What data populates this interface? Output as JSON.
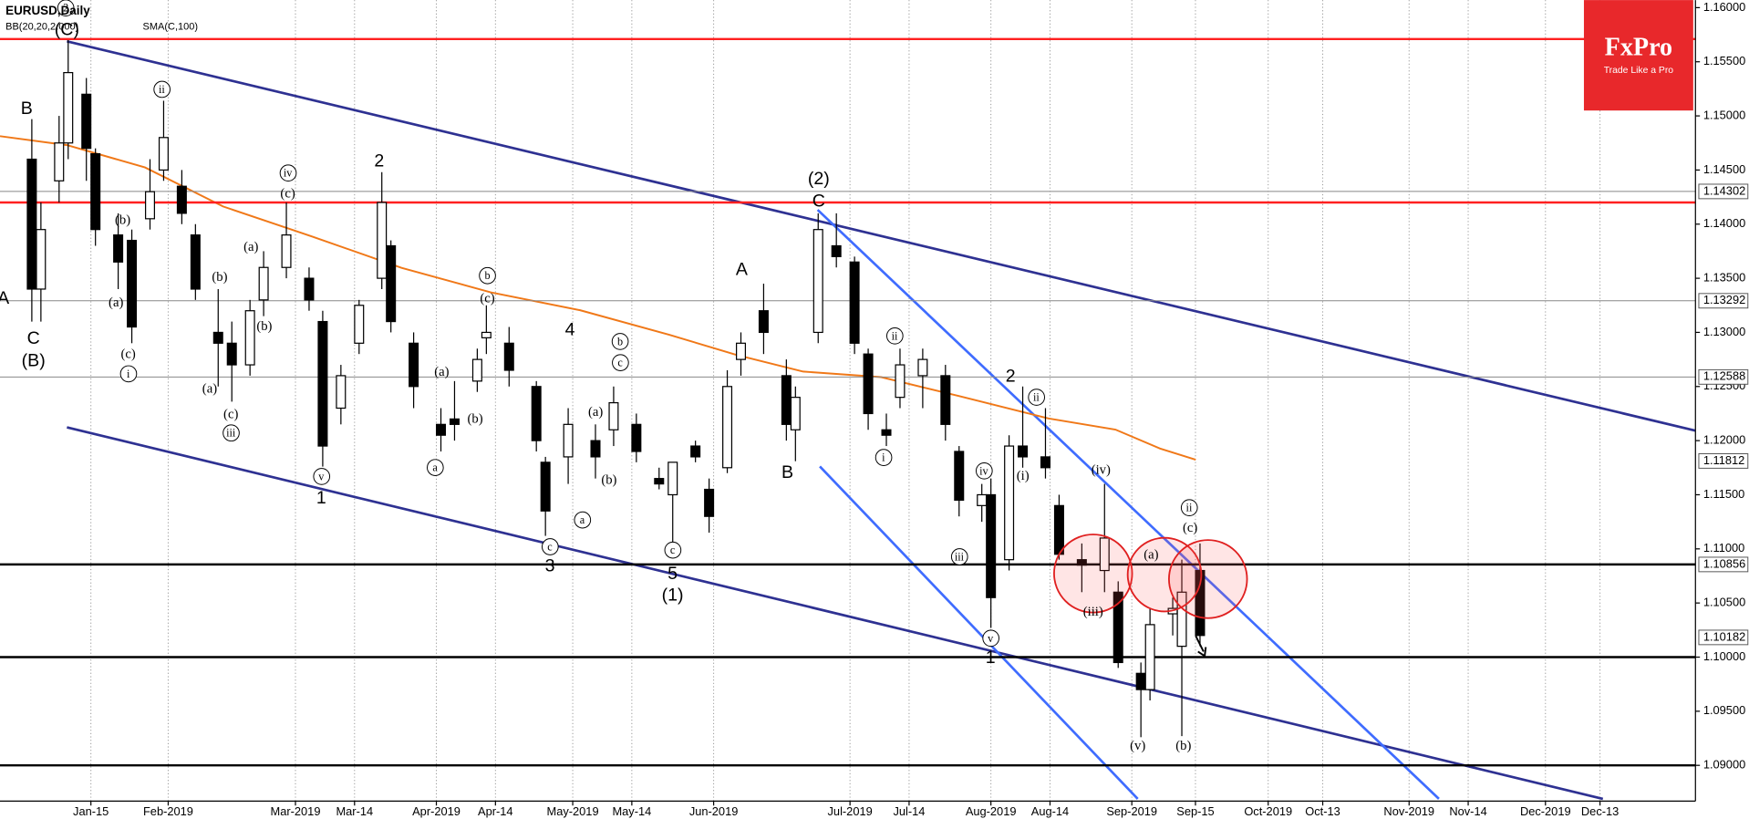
{
  "chart_data": {
    "type": "candlestick",
    "title": "EURUSD,Daily",
    "indicators": [
      {
        "name": "BB(20,20,2.000)",
        "color": "#4a9a9a"
      },
      {
        "name": "SMA(C,100)",
        "color": "#f07818"
      }
    ],
    "logo": {
      "brand": "FxPro",
      "tagline": "Trade Like a Pro",
      "color": "#e8282b"
    },
    "xlim": [
      "2018-12-26",
      "2020-01-03"
    ],
    "xticks": [
      {
        "value": "2019-01-15",
        "label": "Jan-15"
      },
      {
        "value": "2019-02-01",
        "label": "Feb-2019"
      },
      {
        "value": "2019-03-01",
        "label": "Mar-2019"
      },
      {
        "value": "2019-03-14",
        "label": "Mar-14"
      },
      {
        "value": "2019-04-01",
        "label": "Apr-2019"
      },
      {
        "value": "2019-04-14",
        "label": "Apr-14"
      },
      {
        "value": "2019-05-01",
        "label": "May-2019"
      },
      {
        "value": "2019-05-14",
        "label": "May-14"
      },
      {
        "value": "2019-06-01",
        "label": "Jun-2019"
      },
      {
        "value": "2019-07-01",
        "label": "Jul-2019"
      },
      {
        "value": "2019-07-14",
        "label": "Jul-14"
      },
      {
        "value": "2019-08-01",
        "label": "Aug-2019"
      },
      {
        "value": "2019-08-14",
        "label": "Aug-14"
      },
      {
        "value": "2019-09-01",
        "label": "Sep-2019"
      },
      {
        "value": "2019-09-15",
        "label": "Sep-15"
      },
      {
        "value": "2019-10-01",
        "label": "Oct-2019"
      },
      {
        "value": "2019-10-13",
        "label": "Oct-13"
      },
      {
        "value": "2019-11-01",
        "label": "Nov-2019"
      },
      {
        "value": "2019-11-14",
        "label": "Nov-14"
      },
      {
        "value": "2019-12-01",
        "label": "Dec-2019"
      },
      {
        "value": "2019-12-13",
        "label": "Dec-13"
      }
    ],
    "ylim": [
      1.0867,
      1.1607
    ],
    "yticks": [
      {
        "value": 1.09,
        "label": "1.09000"
      },
      {
        "value": 1.095,
        "label": "1.09500"
      },
      {
        "value": 1.1,
        "label": "1.10000"
      },
      {
        "value": 1.105,
        "label": "1.10500"
      },
      {
        "value": 1.11,
        "label": "1.11000"
      },
      {
        "value": 1.115,
        "label": "1.11500"
      },
      {
        "value": 1.12,
        "label": "1.12000"
      },
      {
        "value": 1.125,
        "label": "1.12500"
      },
      {
        "value": 1.13,
        "label": "1.13000"
      },
      {
        "value": 1.135,
        "label": "1.13500"
      },
      {
        "value": 1.14,
        "label": "1.14000"
      },
      {
        "value": 1.145,
        "label": "1.14500"
      },
      {
        "value": 1.15,
        "label": "1.15000"
      },
      {
        "value": 1.155,
        "label": "1.15500"
      },
      {
        "value": 1.16,
        "label": "1.16000"
      }
    ],
    "levels": [
      {
        "value": 1.14302,
        "line": true
      },
      {
        "value": 1.13292,
        "line": true
      },
      {
        "value": 1.12588,
        "line": true
      },
      {
        "value": 1.11812,
        "line": false
      },
      {
        "value": 1.10856,
        "line": false
      },
      {
        "value": 1.10182,
        "line": false
      }
    ],
    "hlines": [
      {
        "value": 1.1571,
        "color": "#ff2020"
      },
      {
        "value": 1.142,
        "color": "#ff2020"
      },
      {
        "value": 1.10856,
        "color": "#000000"
      },
      {
        "value": 1.1,
        "color": "#000000"
      },
      {
        "value": 1.09,
        "color": "#000000"
      }
    ],
    "ohlc": {
      "dates": [
        "2019-01-02",
        "2019-01-04",
        "2019-01-08",
        "2019-01-10",
        "2019-01-14",
        "2019-01-16",
        "2019-01-21",
        "2019-01-24",
        "2019-01-28",
        "2019-01-31",
        "2019-02-04",
        "2019-02-07",
        "2019-02-12",
        "2019-02-15",
        "2019-02-19",
        "2019-02-22",
        "2019-02-27",
        "2019-03-04",
        "2019-03-07",
        "2019-03-11",
        "2019-03-15",
        "2019-03-20",
        "2019-03-22",
        "2019-03-27",
        "2019-04-02",
        "2019-04-05",
        "2019-04-10",
        "2019-04-12",
        "2019-04-17",
        "2019-04-23",
        "2019-04-25",
        "2019-04-30",
        "2019-05-06",
        "2019-05-10",
        "2019-05-15",
        "2019-05-20",
        "2019-05-23",
        "2019-05-28",
        "2019-05-31",
        "2019-06-04",
        "2019-06-07",
        "2019-06-12",
        "2019-06-17",
        "2019-06-19",
        "2019-06-24",
        "2019-06-28",
        "2019-07-02",
        "2019-07-05",
        "2019-07-09",
        "2019-07-12",
        "2019-07-17",
        "2019-07-22",
        "2019-07-25",
        "2019-07-30",
        "2019-08-01",
        "2019-08-05",
        "2019-08-08",
        "2019-08-13",
        "2019-08-16",
        "2019-08-21",
        "2019-08-26",
        "2019-08-29",
        "2019-09-03",
        "2019-09-05",
        "2019-09-10",
        "2019-09-12",
        "2019-09-16"
      ],
      "open": [
        1.146,
        1.134,
        1.144,
        1.1475,
        1.152,
        1.1465,
        1.139,
        1.1385,
        1.1405,
        1.145,
        1.1435,
        1.139,
        1.13,
        1.129,
        1.127,
        1.133,
        1.136,
        1.135,
        1.131,
        1.123,
        1.129,
        1.135,
        1.138,
        1.129,
        1.1215,
        1.122,
        1.1255,
        1.1295,
        1.129,
        1.125,
        1.118,
        1.1185,
        1.12,
        1.121,
        1.1215,
        1.1165,
        1.115,
        1.1195,
        1.1155,
        1.1175,
        1.1275,
        1.132,
        1.126,
        1.121,
        1.13,
        1.138,
        1.1365,
        1.128,
        1.121,
        1.124,
        1.126,
        1.126,
        1.119,
        1.114,
        1.115,
        1.109,
        1.1195,
        1.1185,
        1.114,
        1.109,
        1.108,
        1.106,
        1.0985,
        1.097,
        1.104,
        1.101,
        1.108
      ],
      "high": [
        1.1497,
        1.142,
        1.15,
        1.157,
        1.1535,
        1.147,
        1.141,
        1.1395,
        1.146,
        1.1514,
        1.145,
        1.14,
        1.134,
        1.131,
        1.133,
        1.1375,
        1.142,
        1.136,
        1.132,
        1.127,
        1.133,
        1.1448,
        1.1385,
        1.13,
        1.123,
        1.1255,
        1.1285,
        1.1325,
        1.1305,
        1.1255,
        1.1185,
        1.123,
        1.1215,
        1.125,
        1.1225,
        1.1175,
        1.116,
        1.12,
        1.1165,
        1.1265,
        1.13,
        1.1345,
        1.1275,
        1.125,
        1.141,
        1.141,
        1.137,
        1.1285,
        1.1225,
        1.1285,
        1.1285,
        1.127,
        1.1195,
        1.116,
        1.1165,
        1.1205,
        1.125,
        1.123,
        1.115,
        1.1105,
        1.116,
        1.107,
        1.0995,
        1.1045,
        1.1055,
        1.109,
        1.1105
      ],
      "low": [
        1.131,
        1.131,
        1.142,
        1.146,
        1.144,
        1.138,
        1.134,
        1.129,
        1.1395,
        1.144,
        1.14,
        1.133,
        1.125,
        1.1236,
        1.126,
        1.1315,
        1.135,
        1.132,
        1.1176,
        1.1215,
        1.128,
        1.134,
        1.13,
        1.123,
        1.119,
        1.12,
        1.1245,
        1.128,
        1.125,
        1.119,
        1.1112,
        1.116,
        1.1165,
        1.1195,
        1.118,
        1.1155,
        1.1105,
        1.118,
        1.1115,
        1.117,
        1.126,
        1.128,
        1.12,
        1.1181,
        1.129,
        1.136,
        1.128,
        1.121,
        1.1195,
        1.123,
        1.123,
        1.12,
        1.113,
        1.1125,
        1.1027,
        1.108,
        1.1175,
        1.1165,
        1.109,
        1.106,
        1.106,
        1.099,
        1.0926,
        1.096,
        1.102,
        1.0927,
        1.101
      ],
      "close": [
        1.134,
        1.1395,
        1.1475,
        1.154,
        1.147,
        1.1395,
        1.1365,
        1.1305,
        1.143,
        1.148,
        1.141,
        1.134,
        1.129,
        1.127,
        1.132,
        1.136,
        1.139,
        1.133,
        1.1195,
        1.126,
        1.1325,
        1.142,
        1.131,
        1.125,
        1.1205,
        1.1215,
        1.1275,
        1.13,
        1.1265,
        1.12,
        1.1135,
        1.1215,
        1.1185,
        1.1235,
        1.119,
        1.116,
        1.118,
        1.1185,
        1.113,
        1.125,
        1.129,
        1.13,
        1.1215,
        1.124,
        1.1395,
        1.137,
        1.129,
        1.1225,
        1.1205,
        1.127,
        1.1275,
        1.1215,
        1.1145,
        1.115,
        1.1055,
        1.1195,
        1.1185,
        1.1175,
        1.1095,
        1.1085,
        1.111,
        1.0995,
        1.097,
        1.103,
        1.1045,
        1.106,
        1.102
      ]
    },
    "annotations": [
      "A",
      "B",
      "C",
      "(B)",
      "(C)",
      "2",
      "(a)",
      "(b)",
      "(c)",
      "i",
      "ii",
      "(a)",
      "(b)",
      "(c)",
      "iii",
      "(a)",
      "(b)",
      "iv",
      "(c)",
      "2",
      "v",
      "1",
      "(a)",
      "(b)",
      "a",
      "b",
      "(c)",
      "4",
      "(a)",
      "(b)",
      "a",
      "b",
      "c",
      "c",
      "3",
      "c",
      "5",
      "(1)",
      "A",
      "B",
      "(2)",
      "C",
      "ii",
      "i",
      "2",
      "ii",
      "(i)",
      "iv",
      "iii",
      "v",
      "1",
      "(iv)",
      "(iii)",
      "(a)",
      "(v)",
      "(b)",
      "ii",
      "(c)"
    ]
  }
}
